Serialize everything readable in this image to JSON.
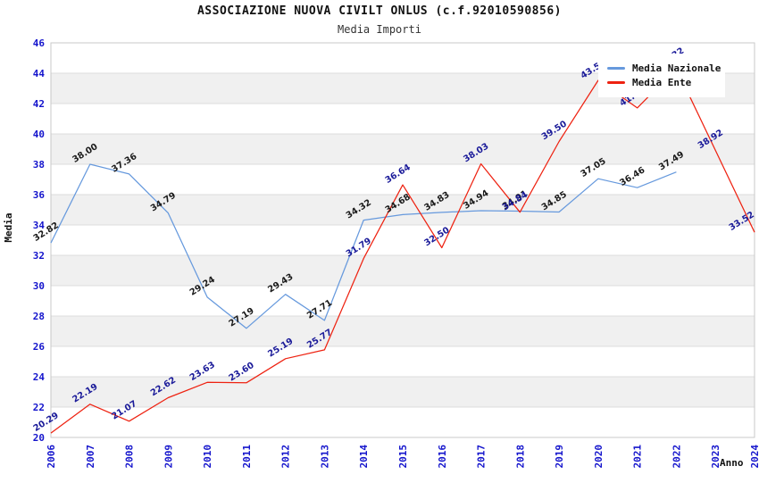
{
  "title": "ASSOCIAZIONE NUOVA CIVILT ONLUS (c.f.92010590856)",
  "subtitle": "Media Importi",
  "legend": {
    "items": [
      {
        "label": "Media Nazionale",
        "color": "#6699dd"
      },
      {
        "label": "Media Ente",
        "color": "#ee2211"
      }
    ]
  },
  "axes": {
    "x_label": "Anno",
    "y_label": "Media",
    "y_ticks": [
      20,
      22,
      24,
      26,
      28,
      30,
      32,
      34,
      36,
      38,
      40,
      42,
      44,
      46
    ],
    "tick_color": "#1414cc",
    "band_color": "#f0f0f0",
    "grid_color": "#dcdcdc",
    "border_color": "#c9c9c9"
  },
  "chart_data": {
    "type": "line",
    "title": "Media Importi",
    "xlabel": "Anno",
    "ylabel": "Media",
    "ylim": [
      20,
      46
    ],
    "grid": "horizontal-bands",
    "legend_position": "top-right",
    "x": [
      2006,
      2007,
      2008,
      2009,
      2010,
      2011,
      2012,
      2013,
      2014,
      2015,
      2016,
      2017,
      2018,
      2019,
      2020,
      2021,
      2022,
      2023,
      2024
    ],
    "series": [
      {
        "name": "Media Nazionale",
        "color": "#6699dd",
        "label_color": "#1a1a1a",
        "values": [
          32.82,
          38.0,
          37.36,
          34.79,
          29.24,
          27.19,
          29.43,
          27.71,
          34.32,
          34.68,
          34.83,
          34.94,
          34.91,
          34.85,
          37.05,
          36.46,
          37.49,
          null,
          null
        ]
      },
      {
        "name": "Media Ente",
        "color": "#ee2211",
        "label_color": "#1a1a99",
        "values": [
          20.29,
          22.19,
          21.07,
          22.62,
          23.63,
          23.6,
          25.19,
          25.77,
          31.79,
          36.64,
          32.5,
          38.03,
          34.84,
          39.5,
          43.53,
          41.71,
          44.32,
          38.92,
          33.52
        ]
      }
    ]
  }
}
